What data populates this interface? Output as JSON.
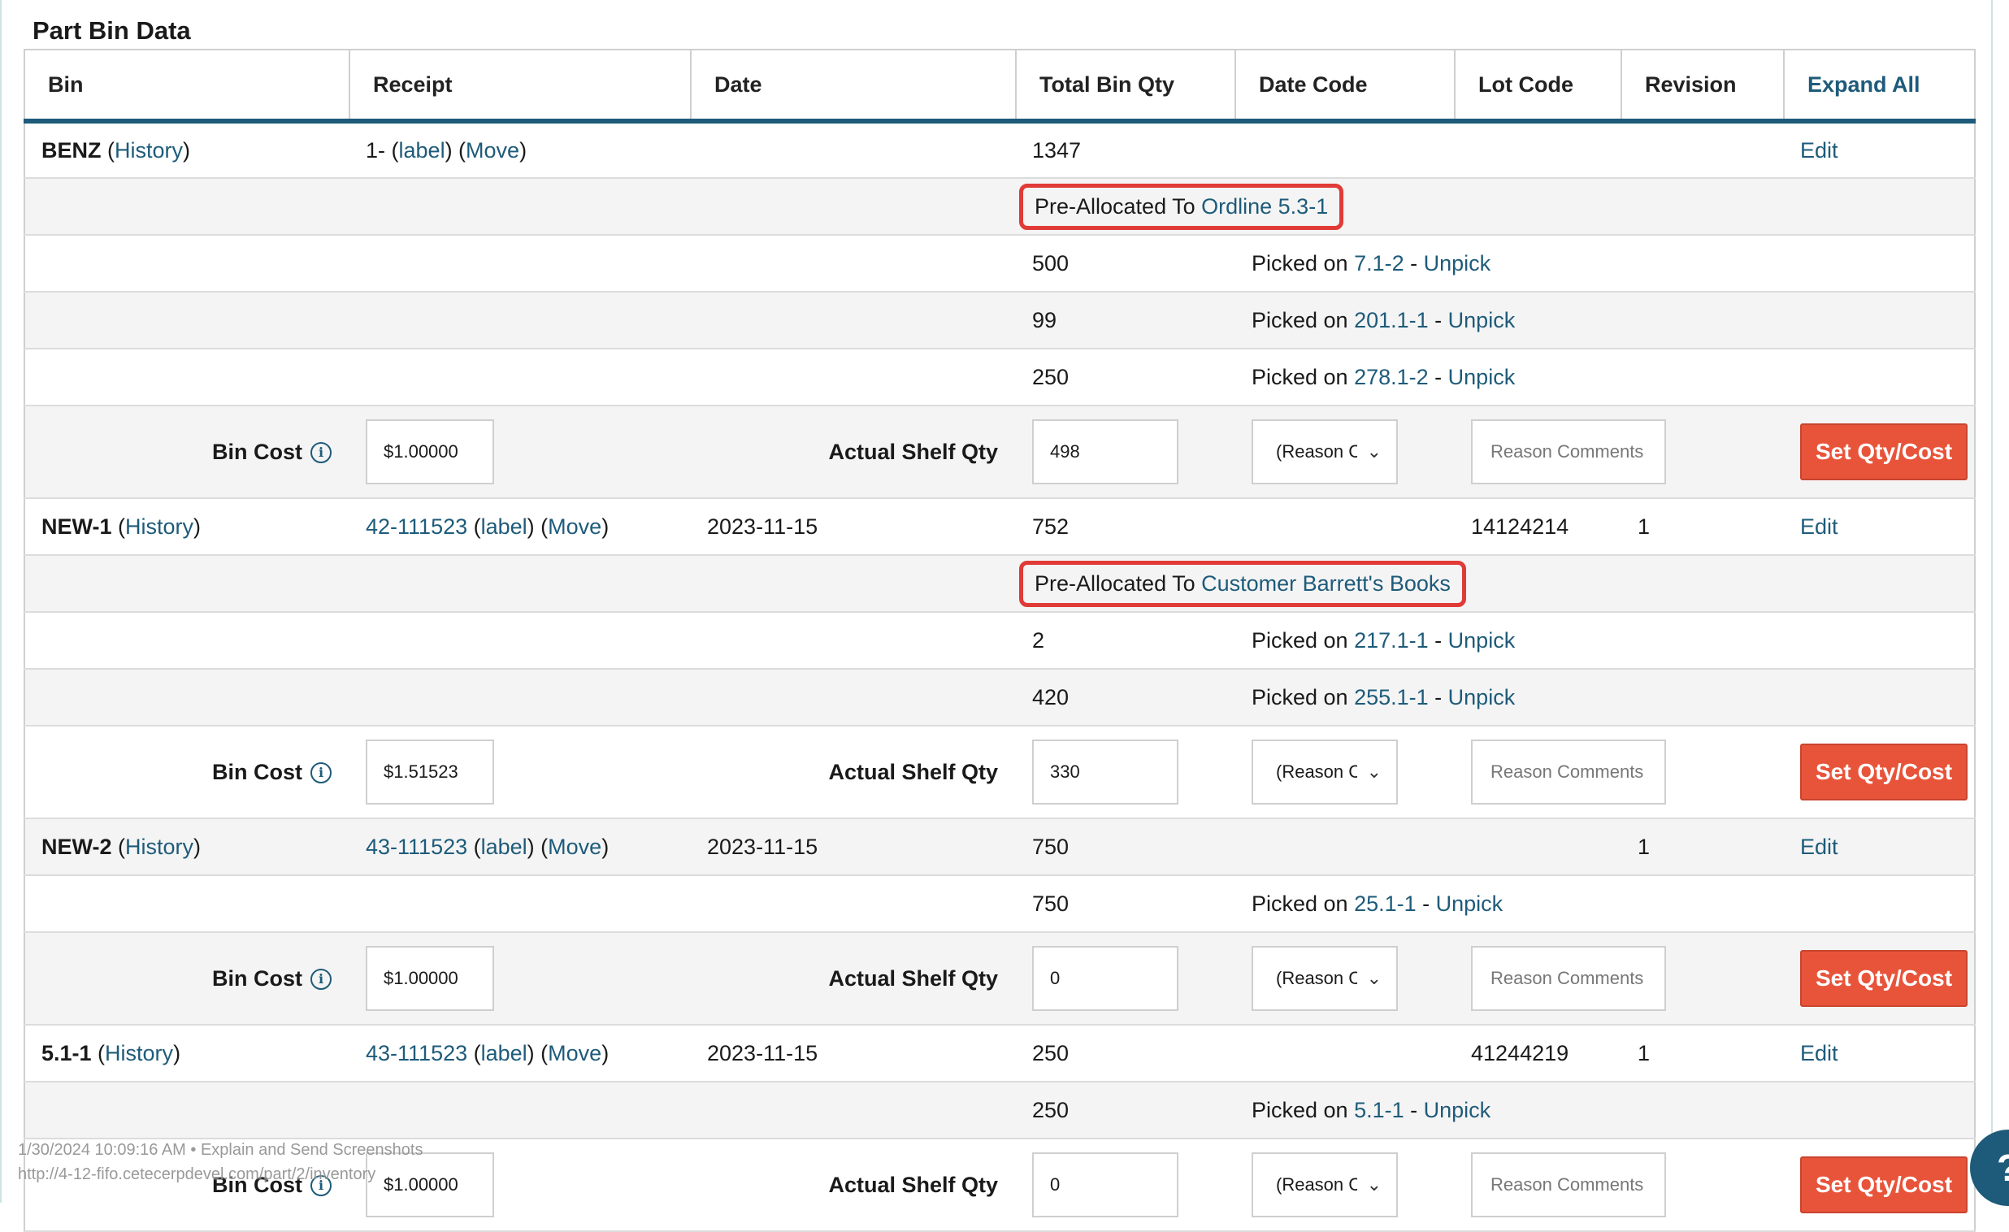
{
  "section_title": "Part Bin Data",
  "headers": {
    "bin": "Bin",
    "receipt": "Receipt",
    "date": "Date",
    "total_bin_qty": "Total Bin Qty",
    "date_code": "Date Code",
    "lot_code": "Lot Code",
    "revision": "Revision",
    "expand_all": "Expand All"
  },
  "common": {
    "history": "History",
    "label": "label",
    "move": "Move",
    "edit": "Edit",
    "picked_on": "Picked on",
    "unpick": "Unpick",
    "pre_allocated_to": "Pre-Allocated To",
    "bin_cost": "Bin Cost",
    "actual_shelf_qty": "Actual Shelf Qty",
    "reason_select": "(Reason C",
    "reason_comments": "Reason Comments",
    "set_qty_cost": "Set Qty/Cost",
    "info_glyph": "i",
    "chevron_glyph": "⌄"
  },
  "bins": [
    {
      "bin": "BENZ",
      "receipt_prefix": "1-",
      "receipt_link": "",
      "date": "",
      "total_qty": "1347",
      "lot_code": "",
      "revision": "",
      "pre_allocated": "Ordline 5.3-1",
      "picks": [
        {
          "qty": "500",
          "ref": "7.1-2"
        },
        {
          "qty": "99",
          "ref": "201.1-1"
        },
        {
          "qty": "250",
          "ref": "278.1-2"
        }
      ],
      "bin_cost": "$1.00000",
      "shelf_qty": "498"
    },
    {
      "bin": "NEW-1",
      "receipt_prefix": "",
      "receipt_link": "42-111523",
      "date": "2023-11-15",
      "total_qty": "752",
      "lot_code": "14124214",
      "revision": "1",
      "pre_allocated": "Customer Barrett's Books",
      "picks": [
        {
          "qty": "2",
          "ref": "217.1-1"
        },
        {
          "qty": "420",
          "ref": "255.1-1"
        }
      ],
      "bin_cost": "$1.51523",
      "shelf_qty": "330"
    },
    {
      "bin": "NEW-2",
      "receipt_prefix": "",
      "receipt_link": "43-111523",
      "date": "2023-11-15",
      "total_qty": "750",
      "lot_code": "",
      "revision": "1",
      "pre_allocated": "",
      "picks": [
        {
          "qty": "750",
          "ref": "25.1-1"
        }
      ],
      "bin_cost": "$1.00000",
      "shelf_qty": "0"
    },
    {
      "bin": "5.1-1",
      "receipt_prefix": "",
      "receipt_link": "43-111523",
      "date": "2023-11-15",
      "total_qty": "250",
      "lot_code": "41244219",
      "revision": "1",
      "pre_allocated": "",
      "picks": [
        {
          "qty": "250",
          "ref": "5.1-1"
        }
      ],
      "bin_cost": "$1.00000",
      "shelf_qty": "0"
    }
  ],
  "footer": {
    "timestamp_line": "1/30/2024 10:09:16 AM • Explain and Send Screenshots",
    "url_line": "http://4-12-fifo.cetecerpdevel.com/part/2/inventory"
  },
  "help_button": "?"
}
